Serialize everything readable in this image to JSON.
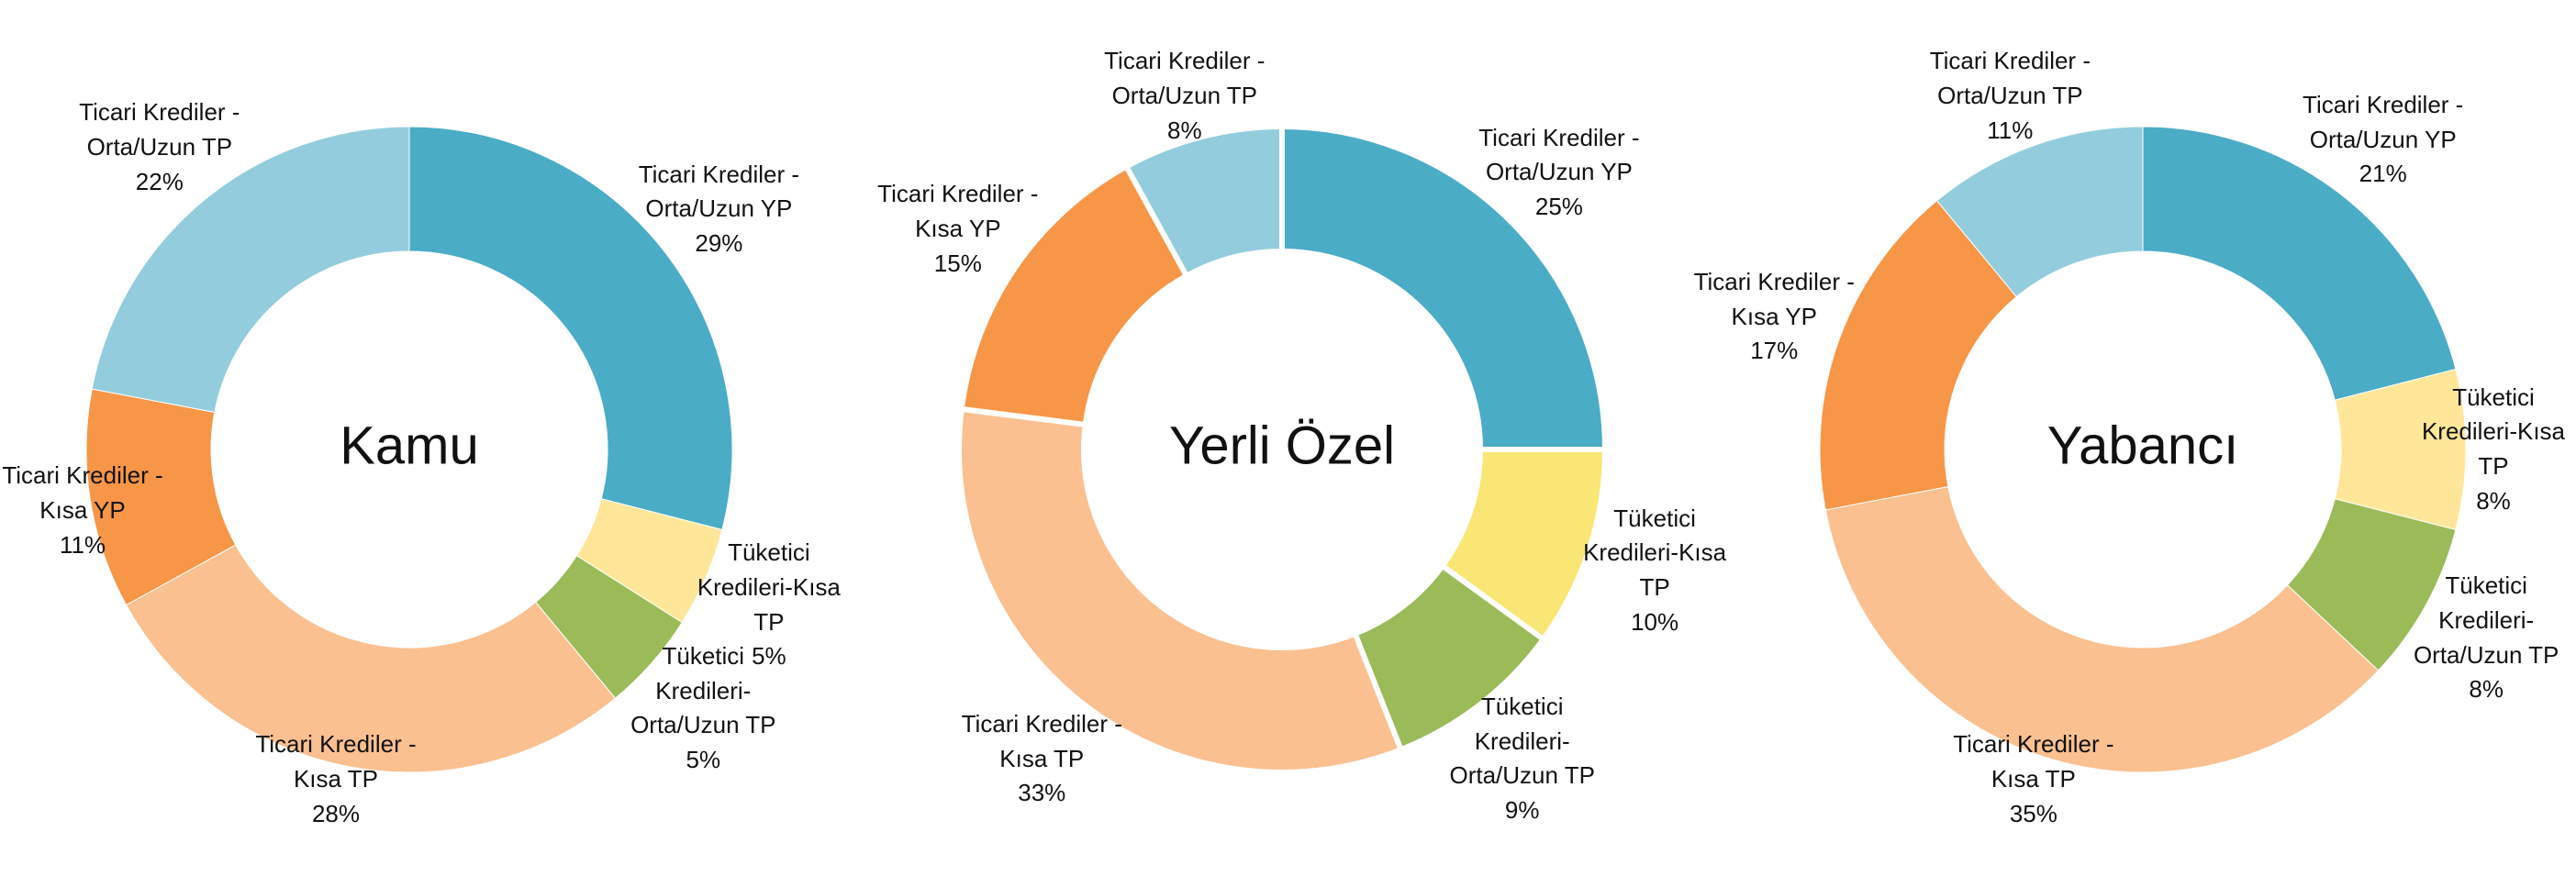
{
  "chart_data": [
    {
      "type": "donut",
      "title": "Kamu",
      "categories": [
        "Ticari Krediler - Orta/Uzun YP",
        "Tüketici Kredileri-Kısa TP",
        "Tüketici Kredileri-Orta/Uzun TP",
        "Ticari Krediler - Kısa TP",
        "Ticari Krediler - Kısa YP",
        "Ticari Krediler - Orta/Uzun TP"
      ],
      "values": [
        29,
        5,
        5,
        28,
        11,
        22
      ],
      "value_labels": [
        "29%",
        "5%",
        "5%",
        "28%",
        "11%",
        "22%"
      ],
      "colors": [
        "#4BACC6",
        "#FFE699",
        "#9BBB59",
        "#FAC090",
        "#F79646",
        "#93CDDD"
      ]
    },
    {
      "type": "donut",
      "title": "Yerli Özel",
      "categories": [
        "Ticari Krediler - Orta/Uzun YP",
        "Tüketici Kredileri-Kısa TP",
        "Tüketici Kredileri-Orta/Uzun TP",
        "Ticari Krediler - Kısa TP",
        "Ticari Krediler - Kısa YP",
        "Ticari Krediler - Orta/Uzun TP"
      ],
      "values": [
        25,
        10,
        9,
        33,
        15,
        8
      ],
      "value_labels": [
        "25%",
        "10%",
        "9%",
        "33%",
        "15%",
        "8%"
      ],
      "colors": [
        "#4BACC6",
        "#F9E675",
        "#9BBB59",
        "#FAC090",
        "#F79646",
        "#93CDDD"
      ]
    },
    {
      "type": "donut",
      "title": "Yabancı",
      "categories": [
        "Ticari Krediler - Orta/Uzun YP",
        "Tüketici Kredileri-Kısa TP",
        "Tüketici Kredileri-Orta/Uzun TP",
        "Ticari Krediler - Kısa TP",
        "Ticari Krediler - Kısa YP",
        "Ticari Krediler - Orta/Uzun TP"
      ],
      "values": [
        21,
        8,
        8,
        35,
        17,
        11
      ],
      "value_labels": [
        "21%",
        "8%",
        "8%",
        "35%",
        "17%",
        "11%"
      ],
      "colors": [
        "#4BACC6",
        "#FFE699",
        "#9BBB59",
        "#FAC090",
        "#F79646",
        "#93CDDD"
      ]
    }
  ]
}
